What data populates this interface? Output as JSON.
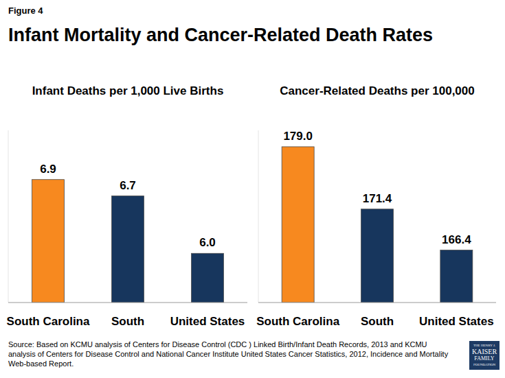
{
  "figure_label": "Figure 4",
  "title": "Infant Mortality and Cancer-Related Death Rates",
  "source": "Source: Based on KCMU analysis of Centers for Disease Control (CDC ) Linked Birth/Infant Death Records, 2013 and KCMU analysis of Centers for Disease Control and National Cancer Institute United States Cancer Statistics, 2012, Incidence and Mortality Web-based Report.",
  "logo": [
    "THE HENRY J.",
    "KAISER",
    "FAMILY",
    "FOUNDATION"
  ],
  "chart_data": [
    {
      "type": "bar",
      "title": "Infant Deaths per 1,000 Live Births",
      "categories": [
        "South Carolina",
        "South",
        "United States"
      ],
      "values": [
        6.9,
        6.7,
        6.0
      ],
      "value_labels": [
        "6.9",
        "6.7",
        "6.0"
      ],
      "colors": [
        "#f7891f",
        "#17365d",
        "#17365d"
      ],
      "ylim": [
        5.4,
        7.5
      ],
      "data_labels": true,
      "tick_labels": "x",
      "grid": false
    },
    {
      "type": "bar",
      "title": "Cancer-Related Deaths per 100,000",
      "categories": [
        "South Carolina",
        "South",
        "United States"
      ],
      "values": [
        179.0,
        171.4,
        166.4
      ],
      "value_labels": [
        "179.0",
        "171.4",
        "166.4"
      ],
      "colors": [
        "#f7891f",
        "#17365d",
        "#17365d"
      ],
      "ylim": [
        160,
        181
      ],
      "data_labels": true,
      "tick_labels": "x",
      "grid": false
    }
  ]
}
